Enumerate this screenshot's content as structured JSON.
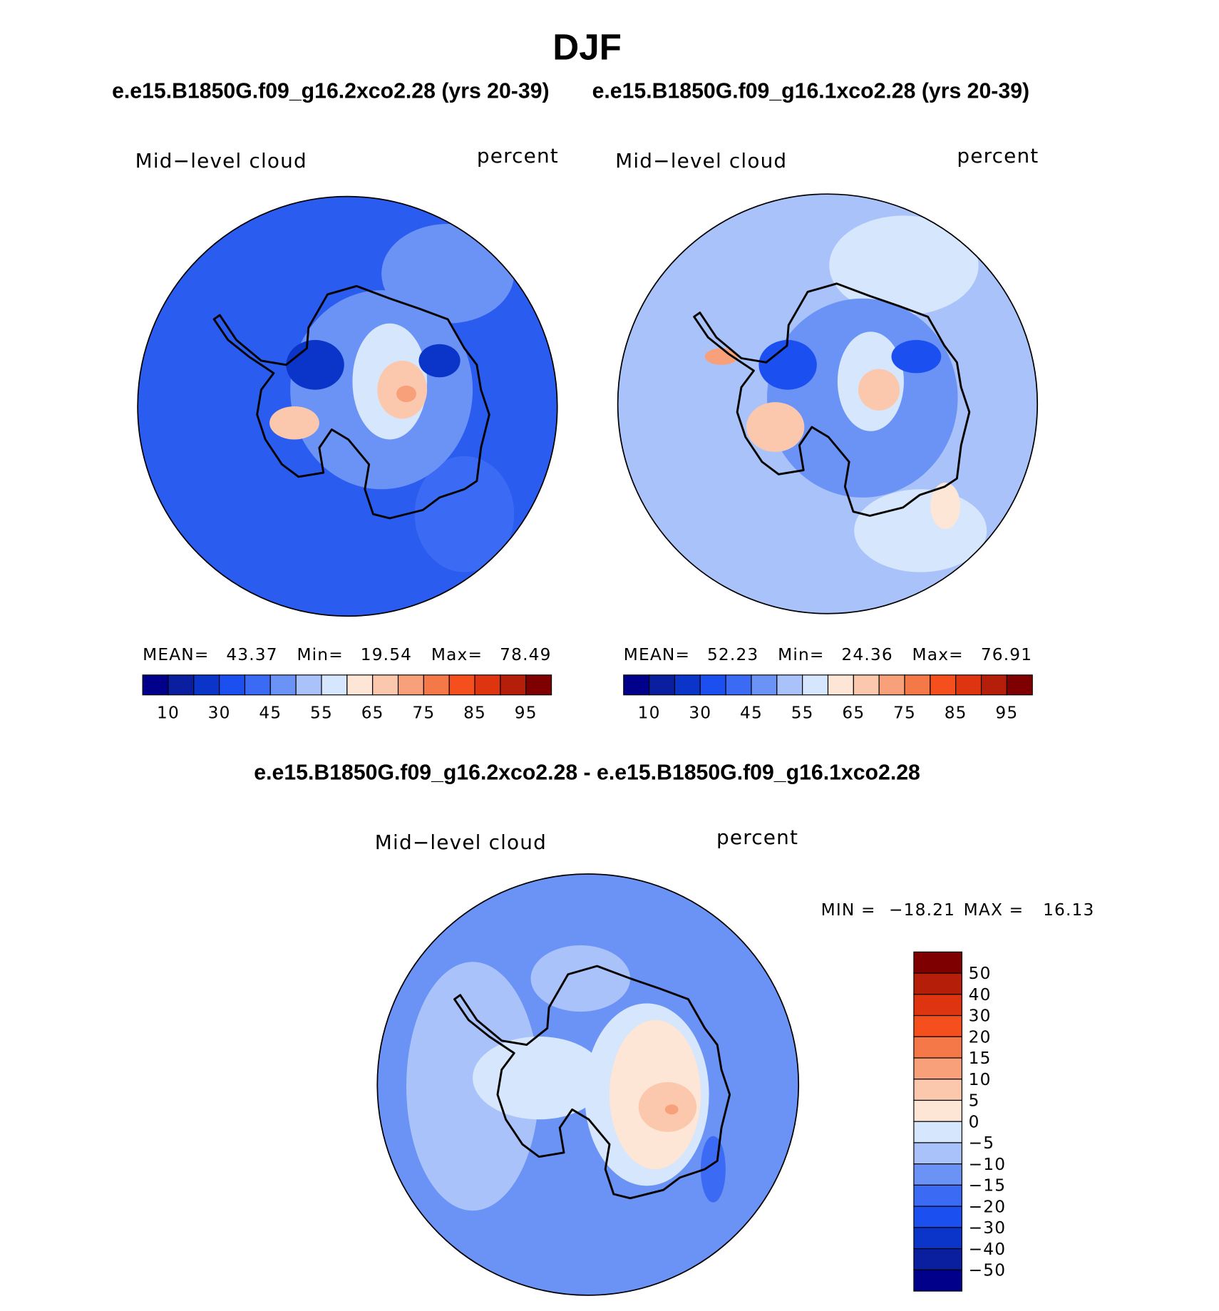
{
  "title": "DJF",
  "subtitle_left": "e.e15.B1850G.f09_g16.2xco2.28 (yrs 20-39)",
  "subtitle_right": "e.e15.B1850G.f09_g16.1xco2.28 (yrs 20-39)",
  "panels": [
    {
      "variable": "Mid−level cloud",
      "units": "percent",
      "mean_label": "MEAN=",
      "mean": "43.37",
      "min_label": "Min=",
      "min": "19.54",
      "max_label": "Max=",
      "max": "78.49",
      "colorbar_labels": [
        "10",
        "30",
        "45",
        "55",
        "65",
        "75",
        "85",
        "95"
      ]
    },
    {
      "variable": "Mid−level cloud",
      "units": "percent",
      "mean_label": "MEAN=",
      "mean": "52.23",
      "min_label": "Min=",
      "min": "24.36",
      "max_label": "Max=",
      "max": "76.91",
      "colorbar_labels": [
        "10",
        "30",
        "45",
        "55",
        "65",
        "75",
        "85",
        "95"
      ]
    }
  ],
  "diff_title": "e.e15.B1850G.f09_g16.2xco2.28 - e.e15.B1850G.f09_g16.1xco2.28",
  "diff_panel": {
    "variable": "Mid−level cloud",
    "units": "percent",
    "min_label": "MIN =",
    "min": "−18.21",
    "max_label": "MAX =",
    "max": "16.13",
    "colorbar_labels": [
      "50",
      "40",
      "30",
      "20",
      "15",
      "10",
      "5",
      "0",
      "−5",
      "−10",
      "−15",
      "−20",
      "−30",
      "−40",
      "−50"
    ]
  }
}
